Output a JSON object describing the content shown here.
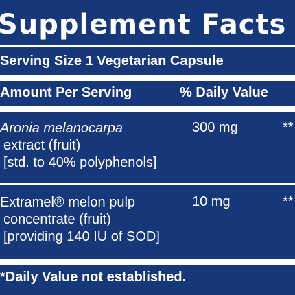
{
  "label": {
    "title": "Supplement Facts",
    "serving_size": "Serving Size 1 Vegetarian Capsule",
    "header": {
      "amount_per_serving": "Amount Per Serving",
      "daily_value": "% Daily Value"
    },
    "ingredients": [
      {
        "name": "Aronia melanocarpa",
        "line2": "extract (fruit)",
        "line3": "[std. to 40% polyphenols]",
        "amount": "300 mg",
        "daily_value": "**"
      },
      {
        "name": "Extramel® melon pulp",
        "line2": "concentrate (fruit)",
        "line3": "[providing 140 IU of SOD]",
        "amount": "10 mg",
        "daily_value": "**"
      }
    ],
    "footnote": "*Daily Value not established."
  },
  "colors": {
    "background": "#17377b",
    "text": "#ffffff"
  }
}
